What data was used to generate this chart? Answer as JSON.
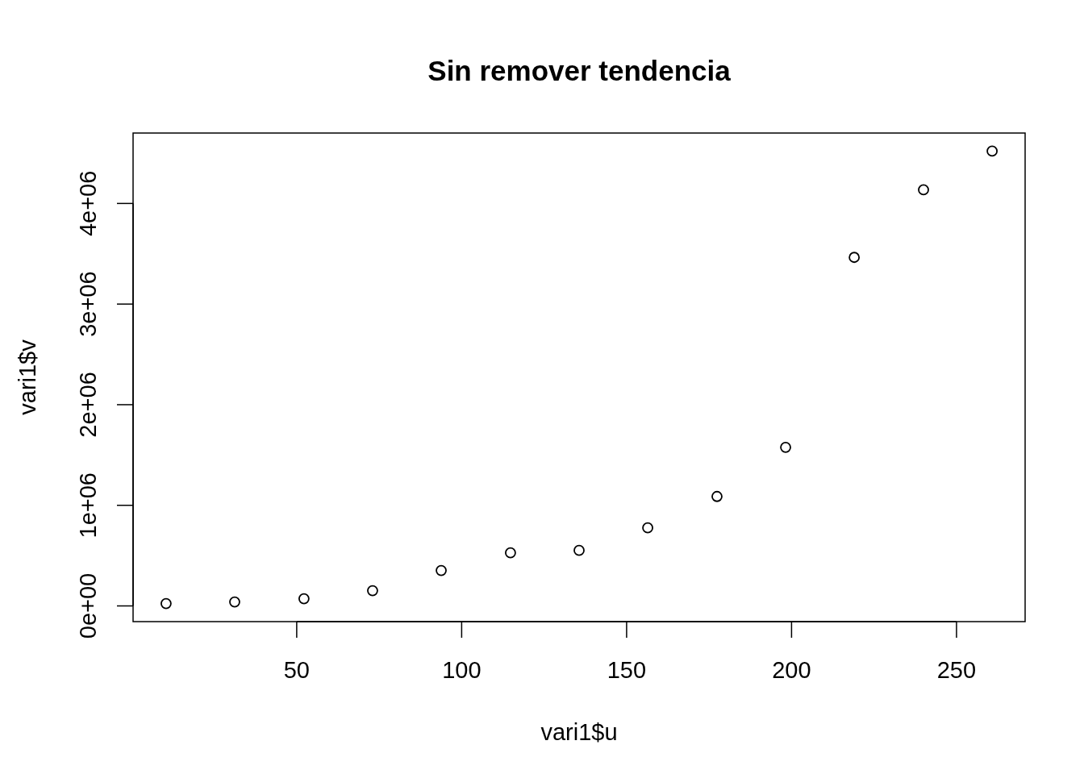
{
  "chart_data": {
    "type": "scatter",
    "title": "Sin remover tendencia",
    "xlabel": "vari1$u",
    "ylabel": "vari1$v",
    "x": [
      10.4,
      31.2,
      52.2,
      73,
      93.8,
      114.8,
      135.6,
      156.4,
      177.4,
      198.2,
      219,
      240,
      260.8
    ],
    "series": [
      {
        "color": "#000000",
        "values": [
          24000,
          40000,
          72000,
          152000,
          352000,
          528000,
          552000,
          776000,
          1088000,
          1576000,
          3464000,
          4136000,
          4520000
        ]
      }
    ],
    "xlim": [
      0.4,
      270.8
    ],
    "ylim": [
      -156000,
      4700000
    ],
    "xticks": [
      50,
      100,
      150,
      200,
      250
    ],
    "yticks": [
      {
        "value": 0,
        "label": "0e+00"
      },
      {
        "value": 1000000,
        "label": "1e+06"
      },
      {
        "value": 2000000,
        "label": "2e+06"
      },
      {
        "value": 3000000,
        "label": "3e+06"
      },
      {
        "value": 4000000,
        "label": "4e+06"
      }
    ],
    "grid": false,
    "marker": "circle"
  }
}
